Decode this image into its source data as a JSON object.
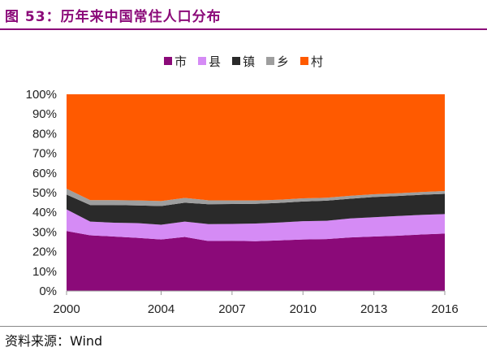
{
  "figure": {
    "title": "图 53：历年来中国常住人口分布",
    "source": "资料来源：Wind"
  },
  "chart_data": {
    "type": "area",
    "stacked": true,
    "percent": true,
    "x": [
      2000,
      2001,
      2002,
      2003,
      2004,
      2005,
      2006,
      2007,
      2008,
      2009,
      2010,
      2011,
      2012,
      2013,
      2014,
      2015,
      2016
    ],
    "xticks": [
      "2000",
      "2004",
      "2007",
      "2010",
      "2013",
      "2016"
    ],
    "ylim": [
      0,
      100
    ],
    "yticks": [
      "0%",
      "10%",
      "20%",
      "30%",
      "40%",
      "50%",
      "60%",
      "70%",
      "80%",
      "90%",
      "100%"
    ],
    "legend_position": "top",
    "series": [
      {
        "name": "市",
        "color": "#8b0a79",
        "values": [
          30.5,
          28.3,
          27.7,
          27.0,
          26.2,
          27.5,
          25.4,
          25.5,
          25.3,
          25.7,
          26.2,
          26.4,
          27.2,
          27.7,
          28.1,
          28.7,
          29.2
        ]
      },
      {
        "name": "县",
        "color": "#d58bf5",
        "values": [
          11.0,
          7.0,
          7.0,
          7.5,
          7.5,
          7.8,
          8.6,
          8.6,
          9.0,
          9.1,
          9.3,
          9.3,
          9.7,
          9.8,
          10.0,
          10.0,
          9.9
        ]
      },
      {
        "name": "镇",
        "color": "#2a2a2a",
        "values": [
          7.5,
          8.4,
          9.0,
          9.0,
          9.5,
          9.6,
          10.1,
          10.1,
          10.0,
          10.0,
          10.0,
          10.2,
          10.0,
          10.3,
          10.2,
          10.2,
          10.3
        ]
      },
      {
        "name": "乡",
        "color": "#9e9e9e",
        "values": [
          3.0,
          2.5,
          2.5,
          2.5,
          2.5,
          2.4,
          2.0,
          1.8,
          1.7,
          1.6,
          1.6,
          1.5,
          1.5,
          1.4,
          1.4,
          1.4,
          1.4
        ]
      },
      {
        "name": "村",
        "color": "#ff5a00",
        "values": [
          48.0,
          53.8,
          53.8,
          54.0,
          54.3,
          52.7,
          53.9,
          54.0,
          54.0,
          53.6,
          52.9,
          52.6,
          51.6,
          50.8,
          50.3,
          49.7,
          49.2
        ]
      }
    ]
  }
}
